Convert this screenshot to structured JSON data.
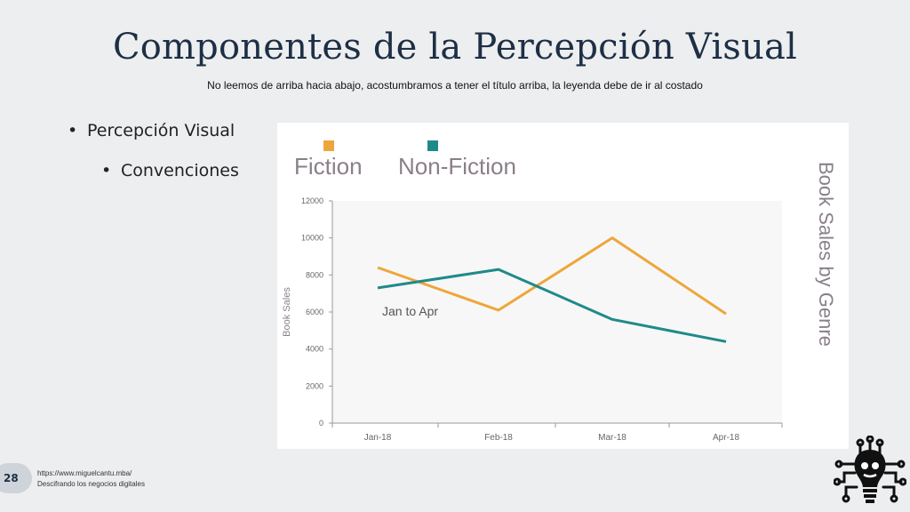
{
  "slide": {
    "title": "Componentes de la Percepción Visual",
    "subtitle": "No leemos de arriba hacia abajo, acostumbramos a tener el título arriba, la leyenda debe de ir al costado",
    "bullets": [
      "Percepción Visual",
      "Convenciones"
    ],
    "page_number": "28",
    "footer_url": "https://www.miguelcantu.mba/",
    "footer_tagline": "Descifrando los negocios digitales"
  },
  "chart_data": {
    "type": "line",
    "title": "Book Sales by Genre",
    "ylabel": "Book Sales",
    "xlabel": "",
    "annotation": "Jan to Apr",
    "categories": [
      "Jan-18",
      "Feb-18",
      "Mar-18",
      "Apr-18"
    ],
    "ylim": [
      0,
      12000
    ],
    "yticks": [
      0,
      2000,
      4000,
      6000,
      8000,
      10000,
      12000
    ],
    "legend_position": "top-left",
    "grid": false,
    "series": [
      {
        "name": "Fiction",
        "color": "#eea63a",
        "values": [
          8400,
          6100,
          10000,
          5900
        ]
      },
      {
        "name": "Non-Fiction",
        "color": "#1f8a8a",
        "values": [
          7300,
          8300,
          5600,
          4400
        ]
      }
    ]
  }
}
